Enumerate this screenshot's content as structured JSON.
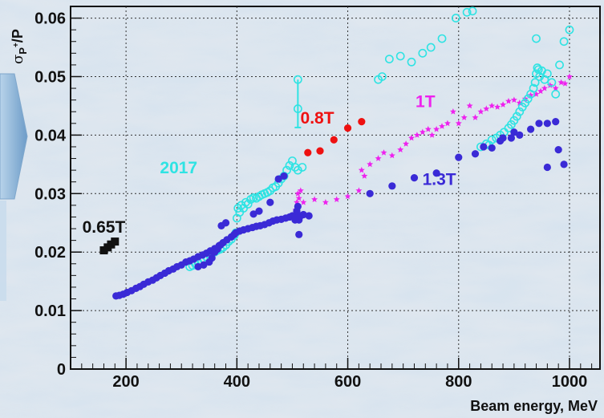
{
  "chart_data": {
    "type": "scatter",
    "xlabel": "Beam energy, MeV",
    "ylabel": "σ_P+/P",
    "ylabel_main": "σ",
    "ylabel_sub": "P",
    "ylabel_sup": "+",
    "ylabel_tail": "/P",
    "xlim": [
      100,
      1055
    ],
    "ylim": [
      0,
      0.062
    ],
    "xticks": [
      200,
      400,
      600,
      800,
      1000
    ],
    "yticks": [
      0,
      0.01,
      0.02,
      0.03,
      0.04,
      0.05,
      0.06
    ],
    "ytick_labels": [
      "0",
      "0.01",
      "0.02",
      "0.03",
      "0.04",
      "0.05",
      "0.06"
    ],
    "grid": true,
    "annotations": [
      {
        "text": "0.65T",
        "x": 160,
        "y": 0.0233,
        "color": "#111111"
      },
      {
        "text": "2017",
        "x": 295,
        "y": 0.0335,
        "color": "#2fe3e3"
      },
      {
        "text": "0.8T",
        "x": 545,
        "y": 0.042,
        "color": "#ee1111"
      },
      {
        "text": "1T",
        "x": 740,
        "y": 0.0448,
        "color": "#ee22ee"
      },
      {
        "text": "1.3T",
        "x": 765,
        "y": 0.0315,
        "color": "#3a2ad6"
      }
    ],
    "series": [
      {
        "marker": "square",
        "color": "#111111",
        "points": [
          [
            160,
            0.0203
          ],
          [
            167,
            0.0208
          ],
          [
            173,
            0.0213
          ],
          [
            180,
            0.0218
          ]
        ]
      },
      {
        "marker": "circle",
        "color": "#ee1111",
        "points": [
          [
            528,
            0.037
          ],
          [
            550,
            0.0373
          ],
          [
            575,
            0.0392
          ],
          [
            600,
            0.0412
          ],
          [
            625,
            0.0423
          ]
        ]
      },
      {
        "marker": "star",
        "color": "#ee22ee",
        "points": [
          [
            503,
            0.0258
          ],
          [
            506,
            0.0272
          ],
          [
            508,
            0.0285
          ],
          [
            510,
            0.03
          ],
          [
            512,
            0.0292
          ],
          [
            515,
            0.0305
          ],
          [
            520,
            0.0285
          ],
          [
            540,
            0.029
          ],
          [
            560,
            0.0285
          ],
          [
            580,
            0.029
          ],
          [
            600,
            0.0295
          ],
          [
            620,
            0.0305
          ],
          [
            625,
            0.034
          ],
          [
            630,
            0.033
          ],
          [
            640,
            0.035
          ],
          [
            655,
            0.036
          ],
          [
            665,
            0.037
          ],
          [
            680,
            0.0365
          ],
          [
            695,
            0.0375
          ],
          [
            705,
            0.0385
          ],
          [
            715,
            0.0395
          ],
          [
            725,
            0.04
          ],
          [
            735,
            0.0405
          ],
          [
            745,
            0.041
          ],
          [
            752,
            0.04
          ],
          [
            760,
            0.041
          ],
          [
            770,
            0.0415
          ],
          [
            780,
            0.042
          ],
          [
            790,
            0.044
          ],
          [
            800,
            0.042
          ],
          [
            810,
            0.043
          ],
          [
            820,
            0.045
          ],
          [
            830,
            0.043
          ],
          [
            840,
            0.044
          ],
          [
            850,
            0.0445
          ],
          [
            860,
            0.045
          ],
          [
            870,
            0.0448
          ],
          [
            880,
            0.0452
          ],
          [
            890,
            0.0458
          ],
          [
            900,
            0.046
          ],
          [
            910,
            0.0455
          ],
          [
            920,
            0.0462
          ],
          [
            930,
            0.0468
          ],
          [
            940,
            0.047
          ],
          [
            948,
            0.0475
          ],
          [
            955,
            0.048
          ],
          [
            965,
            0.0485
          ],
          [
            975,
            0.048
          ],
          [
            985,
            0.049
          ],
          [
            992,
            0.0488
          ],
          [
            1000,
            0.05
          ]
        ]
      },
      {
        "marker": "circle-open",
        "color": "#2fe3e3",
        "points": [
          [
            315,
            0.0175
          ],
          [
            320,
            0.0177
          ],
          [
            325,
            0.018
          ],
          [
            330,
            0.0182
          ],
          [
            335,
            0.0185
          ],
          [
            340,
            0.0188
          ],
          [
            345,
            0.0192
          ],
          [
            350,
            0.0197
          ],
          [
            355,
            0.02
          ],
          [
            360,
            0.02
          ],
          [
            365,
            0.0203
          ],
          [
            370,
            0.0205
          ],
          [
            375,
            0.0208
          ],
          [
            380,
            0.0212
          ],
          [
            385,
            0.0218
          ],
          [
            390,
            0.0222
          ],
          [
            395,
            0.0228
          ],
          [
            398,
            0.0233
          ],
          [
            400,
            0.0258
          ],
          [
            402,
            0.0275
          ],
          [
            405,
            0.0268
          ],
          [
            408,
            0.028
          ],
          [
            412,
            0.0275
          ],
          [
            416,
            0.0285
          ],
          [
            420,
            0.0282
          ],
          [
            425,
            0.029
          ],
          [
            430,
            0.0293
          ],
          [
            435,
            0.0292
          ],
          [
            440,
            0.0295
          ],
          [
            445,
            0.0298
          ],
          [
            450,
            0.03
          ],
          [
            455,
            0.0302
          ],
          [
            460,
            0.0305
          ],
          [
            465,
            0.031
          ],
          [
            470,
            0.0312
          ],
          [
            475,
            0.0318
          ],
          [
            480,
            0.0325
          ],
          [
            485,
            0.033
          ],
          [
            490,
            0.034
          ],
          [
            495,
            0.0348
          ],
          [
            500,
            0.0356
          ],
          [
            505,
            0.0345
          ],
          [
            510,
            0.034
          ],
          [
            518,
            0.0345
          ],
          [
            510,
            0.0495
          ],
          [
            510,
            0.0445
          ],
          [
            655,
            0.0495
          ],
          [
            662,
            0.05
          ],
          [
            675,
            0.053
          ],
          [
            695,
            0.0535
          ],
          [
            715,
            0.0525
          ],
          [
            735,
            0.054
          ],
          [
            750,
            0.055
          ],
          [
            770,
            0.0565
          ],
          [
            795,
            0.06
          ],
          [
            815,
            0.061
          ],
          [
            825,
            0.0612
          ],
          [
            840,
            0.038
          ],
          [
            850,
            0.0385
          ],
          [
            855,
            0.0383
          ],
          [
            860,
            0.0392
          ],
          [
            868,
            0.0395
          ],
          [
            875,
            0.04
          ],
          [
            882,
            0.0405
          ],
          [
            890,
            0.0412
          ],
          [
            895,
            0.0418
          ],
          [
            900,
            0.0425
          ],
          [
            905,
            0.0432
          ],
          [
            910,
            0.044
          ],
          [
            915,
            0.0448
          ],
          [
            920,
            0.0455
          ],
          [
            925,
            0.0462
          ],
          [
            930,
            0.047
          ],
          [
            935,
            0.048
          ],
          [
            938,
            0.049
          ],
          [
            940,
            0.0505
          ],
          [
            942,
            0.0515
          ],
          [
            944,
            0.0512
          ],
          [
            946,
            0.05
          ],
          [
            950,
            0.051
          ],
          [
            955,
            0.0495
          ],
          [
            960,
            0.0505
          ],
          [
            968,
            0.049
          ],
          [
            975,
            0.047
          ],
          [
            982,
            0.052
          ],
          [
            990,
            0.056
          ],
          [
            1000,
            0.058
          ],
          [
            940,
            0.0565
          ]
        ]
      },
      {
        "marker": "circle",
        "color": "#3a2ad6",
        "points": [
          [
            182,
            0.0125
          ],
          [
            188,
            0.0126
          ],
          [
            195,
            0.0128
          ],
          [
            202,
            0.0131
          ],
          [
            210,
            0.0134
          ],
          [
            218,
            0.0138
          ],
          [
            225,
            0.0141
          ],
          [
            232,
            0.0145
          ],
          [
            240,
            0.0149
          ],
          [
            248,
            0.0152
          ],
          [
            255,
            0.0156
          ],
          [
            262,
            0.016
          ],
          [
            270,
            0.0164
          ],
          [
            277,
            0.0168
          ],
          [
            285,
            0.0171
          ],
          [
            292,
            0.0175
          ],
          [
            300,
            0.0178
          ],
          [
            308,
            0.0183
          ],
          [
            315,
            0.0185
          ],
          [
            322,
            0.0188
          ],
          [
            330,
            0.0192
          ],
          [
            338,
            0.0195
          ],
          [
            345,
            0.0198
          ],
          [
            352,
            0.0202
          ],
          [
            360,
            0.0206
          ],
          [
            368,
            0.0211
          ],
          [
            375,
            0.0216
          ],
          [
            382,
            0.0221
          ],
          [
            390,
            0.0226
          ],
          [
            395,
            0.023
          ],
          [
            398,
            0.0233
          ],
          [
            405,
            0.0236
          ],
          [
            412,
            0.0238
          ],
          [
            420,
            0.024
          ],
          [
            428,
            0.0242
          ],
          [
            435,
            0.0244
          ],
          [
            442,
            0.0245
          ],
          [
            450,
            0.0247
          ],
          [
            458,
            0.025
          ],
          [
            465,
            0.0253
          ],
          [
            472,
            0.0255
          ],
          [
            480,
            0.0256
          ],
          [
            488,
            0.0258
          ],
          [
            495,
            0.026
          ],
          [
            500,
            0.0262
          ],
          [
            505,
            0.026
          ],
          [
            508,
            0.027
          ],
          [
            510,
            0.0278
          ],
          [
            512,
            0.0255
          ],
          [
            515,
            0.0262
          ],
          [
            520,
            0.0264
          ],
          [
            530,
            0.0262
          ],
          [
            370,
            0.0212
          ],
          [
            372,
            0.0245
          ],
          [
            380,
            0.025
          ],
          [
            360,
            0.02
          ],
          [
            365,
            0.0205
          ],
          [
            330,
            0.0175
          ],
          [
            340,
            0.0178
          ],
          [
            350,
            0.0183
          ],
          [
            355,
            0.019
          ],
          [
            430,
            0.0265
          ],
          [
            440,
            0.027
          ],
          [
            460,
            0.0285
          ],
          [
            475,
            0.0325
          ],
          [
            485,
            0.033
          ],
          [
            505,
            0.0255
          ],
          [
            512,
            0.023
          ],
          [
            640,
            0.03
          ],
          [
            680,
            0.0313
          ],
          [
            720,
            0.0327
          ],
          [
            760,
            0.0335
          ],
          [
            800,
            0.0362
          ],
          [
            830,
            0.0368
          ],
          [
            860,
            0.0378
          ],
          [
            880,
            0.0395
          ],
          [
            900,
            0.0405
          ],
          [
            930,
            0.041
          ],
          [
            945,
            0.042
          ],
          [
            960,
            0.042
          ],
          [
            975,
            0.0423
          ],
          [
            960,
            0.0345
          ],
          [
            980,
            0.0375
          ],
          [
            990,
            0.035
          ],
          [
            895,
            0.0395
          ],
          [
            910,
            0.04
          ],
          [
            875,
            0.039
          ],
          [
            845,
            0.038
          ]
        ]
      }
    ]
  }
}
